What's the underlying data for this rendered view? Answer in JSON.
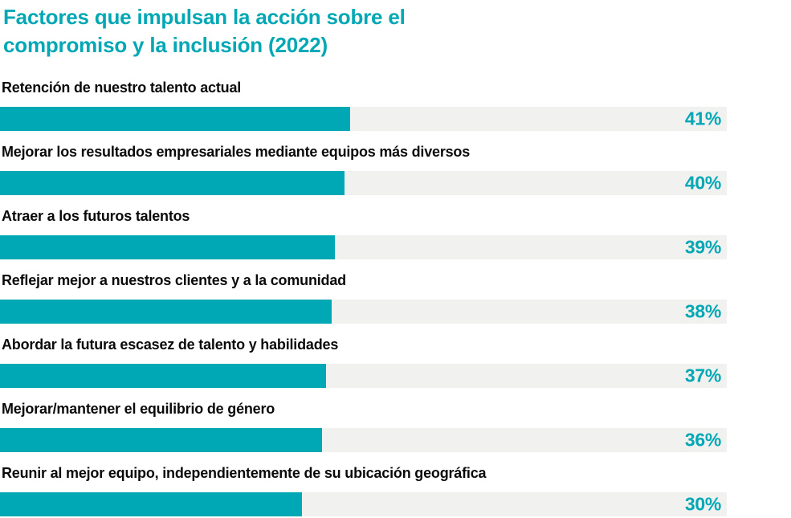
{
  "colors": {
    "teal": "#00a7b5",
    "track": "#f1f1ef",
    "text": "#0a0a0a",
    "bg": "#ffffff"
  },
  "title_lines": [
    "Factores que impulsan la acción sobre el",
    "compromiso y la inclusión (2022)"
  ],
  "chart_data": {
    "type": "bar",
    "orientation": "horizontal",
    "title": "Factores que impulsan la acción sobre el compromiso y la inclusión (2022)",
    "categories": [
      "Retención de nuestro talento actual",
      "Mejorar los resultados empresariales mediante equipos más diversos",
      "Atraer a los futuros talentos",
      "Reflejar mejor a nuestros clientes y a la comunidad",
      "Abordar la futura escasez de talento y habilidades",
      "Mejorar/mantener el equilibrio de género",
      "Reunir al mejor equipo, independientemente de su ubicación geográfica"
    ],
    "values": [
      41,
      40,
      39,
      38,
      37,
      36,
      30
    ],
    "value_labels": [
      "41%",
      "40%",
      "39%",
      "38%",
      "37%",
      "36%",
      "30%"
    ],
    "unit": "percent",
    "xlim": [
      0,
      100
    ],
    "grid": false,
    "legend": false,
    "value_label_position": "inside-right",
    "fill_pct": [
      48.2,
      47.4,
      46.1,
      45.6,
      44.9,
      44.3,
      41.5
    ]
  }
}
